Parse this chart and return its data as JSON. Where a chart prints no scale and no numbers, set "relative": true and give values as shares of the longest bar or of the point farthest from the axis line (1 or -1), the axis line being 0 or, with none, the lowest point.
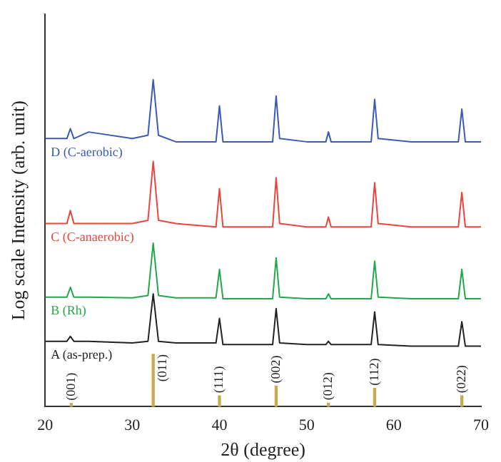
{
  "chart_data": {
    "type": "line",
    "relative": true,
    "xlabel": "2θ (degree)",
    "ylabel": "Log scale Intensity (arb. unit)",
    "xlim": [
      20,
      70
    ],
    "xticks": [
      20,
      30,
      40,
      50,
      60,
      70
    ],
    "legend": false,
    "grid": false,
    "marker": "none",
    "x": [
      20,
      22.5,
      22.9,
      23.3,
      25,
      30,
      31.8,
      32.4,
      33,
      35,
      39.6,
      40,
      40.4,
      45,
      46.1,
      46.5,
      46.9,
      50,
      52.2,
      52.5,
      52.8,
      55,
      57.4,
      57.8,
      58.2,
      62,
      67.4,
      67.8,
      68.2,
      70
    ],
    "series": [
      {
        "name": "D (C-aerobic)",
        "color": "#3a5bb5",
        "values": [
          0.82,
          0.82,
          0.85,
          0.82,
          0.84,
          0.82,
          0.83,
          1.0,
          0.83,
          0.81,
          0.81,
          0.92,
          0.81,
          0.81,
          0.81,
          0.95,
          0.82,
          0.81,
          0.81,
          0.84,
          0.81,
          0.81,
          0.81,
          0.94,
          0.82,
          0.81,
          0.81,
          0.91,
          0.81,
          0.81
        ]
      },
      {
        "name": "C (C-anaerobic)",
        "color": "#e8463c",
        "values": [
          0.56,
          0.56,
          0.6,
          0.56,
          0.56,
          0.56,
          0.57,
          0.75,
          0.57,
          0.56,
          0.55,
          0.667,
          0.55,
          0.55,
          0.55,
          0.7,
          0.56,
          0.55,
          0.55,
          0.58,
          0.55,
          0.55,
          0.55,
          0.685,
          0.56,
          0.55,
          0.55,
          0.655,
          0.55,
          0.55
        ]
      },
      {
        "name": "B (Rh)",
        "color": "#22a84a",
        "values": [
          0.335,
          0.335,
          0.365,
          0.335,
          0.335,
          0.333,
          0.34,
          0.5,
          0.34,
          0.333,
          0.333,
          0.42,
          0.33,
          0.33,
          0.33,
          0.455,
          0.335,
          0.33,
          0.33,
          0.345,
          0.33,
          0.33,
          0.33,
          0.445,
          0.335,
          0.33,
          0.33,
          0.42,
          0.33,
          0.33
        ]
      },
      {
        "name": "A (as-prep.)",
        "color": "#222222",
        "values": [
          0.2,
          0.2,
          0.215,
          0.2,
          0.2,
          0.195,
          0.2,
          0.345,
          0.2,
          0.195,
          0.195,
          0.27,
          0.19,
          0.19,
          0.19,
          0.3,
          0.195,
          0.19,
          0.19,
          0.2,
          0.19,
          0.19,
          0.19,
          0.29,
          0.19,
          0.185,
          0.185,
          0.26,
          0.185,
          0.185
        ]
      },
      {
        "type": "bar",
        "color": "#c8a850",
        "x": [
          23,
          32.4,
          40,
          46.5,
          52.5,
          57.8,
          67.8
        ],
        "values": [
          0.01,
          0.16,
          0.033,
          0.063,
          0.011,
          0.056,
          0.033
        ]
      }
    ],
    "annotations": [
      {
        "text": "(001)",
        "x": 23,
        "y": 0.01
      },
      {
        "text": "(011)",
        "x": 32.4,
        "y": 0.16
      },
      {
        "text": "(111)",
        "x": 40,
        "y": 0.033
      },
      {
        "text": "(002)",
        "x": 46.5,
        "y": 0.063
      },
      {
        "text": "(012)",
        "x": 52.5,
        "y": 0.011
      },
      {
        "text": "(112)",
        "x": 57.8,
        "y": 0.056
      },
      {
        "text": "(022)",
        "x": 67.8,
        "y": 0.033
      }
    ]
  }
}
